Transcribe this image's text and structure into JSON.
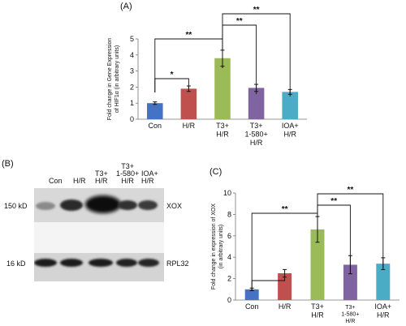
{
  "panels": {
    "a_label": "(A)",
    "b_label": "(B)",
    "c_label": "(C)"
  },
  "blot": {
    "lanes": [
      [
        "Con"
      ],
      [
        "H/R"
      ],
      [
        "T3+",
        "H/R"
      ],
      [
        "T3+",
        "1-580+",
        "H/R"
      ],
      [
        "IOA+",
        "H/R"
      ]
    ],
    "rows": [
      {
        "size": "150 kD",
        "protein": "XOX"
      },
      {
        "size": "16 kD",
        "protein": "RPL32"
      }
    ]
  },
  "chart_data": [
    {
      "id": "A",
      "type": "bar",
      "categories": [
        [
          "Con"
        ],
        [
          "H/R"
        ],
        [
          "T3+",
          "H/R"
        ],
        [
          "T3+",
          "1-580+",
          "H/R"
        ],
        [
          "IOA+",
          "H/R"
        ]
      ],
      "values": [
        1.0,
        1.9,
        3.8,
        1.95,
        1.7
      ],
      "errors": [
        0.08,
        0.17,
        0.5,
        0.22,
        0.15
      ],
      "colors": [
        "#4472c4",
        "#c0504d",
        "#9bbb59",
        "#8064a2",
        "#4bacc6"
      ],
      "ylabel": [
        "Fold change in Gene Expression",
        "of HIF1α (in arbitrary units)"
      ],
      "ylim": [
        0,
        5
      ],
      "yticks": [
        0,
        1,
        2,
        3,
        4,
        5
      ],
      "significance": [
        {
          "from": 0,
          "to": 1,
          "label": "*"
        },
        {
          "from": 0,
          "to": 2,
          "label": "**"
        },
        {
          "from": 2,
          "to": 3,
          "label": "**"
        },
        {
          "from": 2,
          "to": 4,
          "label": "**"
        }
      ]
    },
    {
      "id": "C",
      "type": "bar",
      "categories": [
        [
          "Con"
        ],
        [
          "H/R"
        ],
        [
          "T3+",
          "H/R"
        ],
        [
          "T3+",
          "1-580+",
          "H/R"
        ],
        [
          "IOA+",
          "H/R"
        ]
      ],
      "values": [
        1.0,
        2.5,
        6.6,
        3.3,
        3.4
      ],
      "errors": [
        0.12,
        0.35,
        1.2,
        0.85,
        0.55
      ],
      "colors": [
        "#4472c4",
        "#c0504d",
        "#9bbb59",
        "#8064a2",
        "#4bacc6"
      ],
      "ylabel": [
        "Fold change in expression of XOX",
        "(in arbitrary units)"
      ],
      "ylim": [
        0,
        10
      ],
      "yticks": [
        0,
        2,
        4,
        6,
        8,
        10
      ],
      "significance": [
        {
          "from": 0,
          "to": 1,
          "label": ""
        },
        {
          "from": 0,
          "to": 2,
          "label": "**"
        },
        {
          "from": 2,
          "to": 3,
          "label": "**"
        },
        {
          "from": 2,
          "to": 4,
          "label": "**"
        }
      ]
    }
  ]
}
